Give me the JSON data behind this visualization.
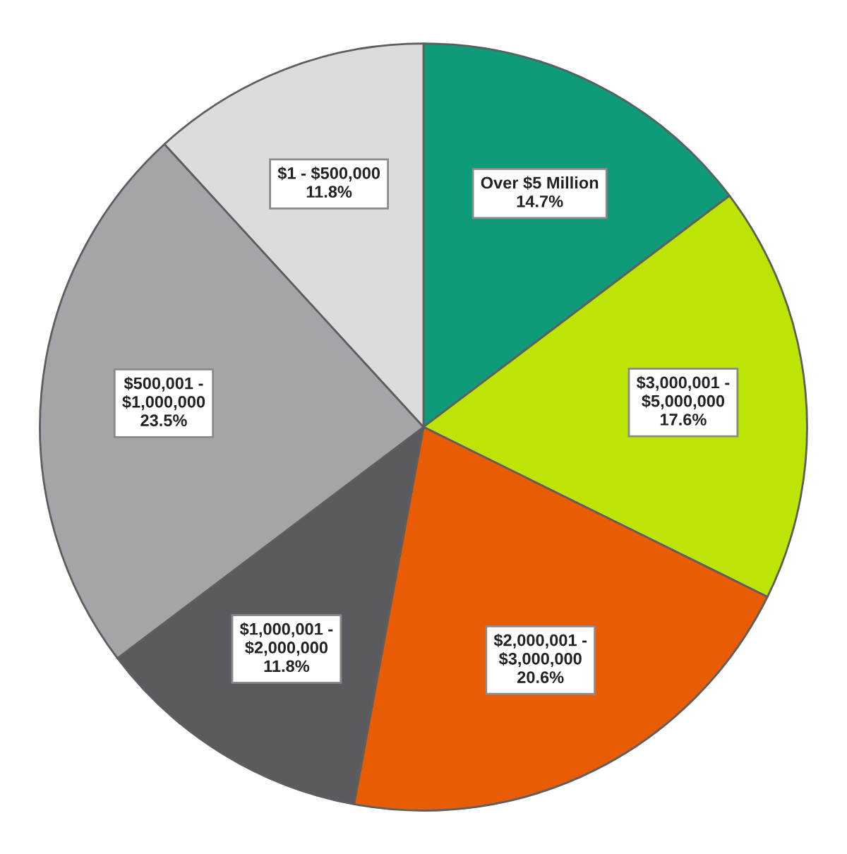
{
  "chart_data": {
    "type": "pie",
    "categories": [
      "Over $5 Million",
      "$3,000,001 -\n$5,000,000",
      "$2,000,001 -\n$3,000,000",
      "$1,000,001 -\n$2,000,000",
      "$500,001 -\n$1,000,000",
      "$1 - $500,000"
    ],
    "values": [
      14.7,
      17.6,
      20.6,
      11.8,
      23.5,
      11.8
    ],
    "colors": [
      "#0f9a7a",
      "#bce404",
      "#e85d04",
      "#5b5b5f",
      "#a3a5a8",
      "#dcdcdc"
    ],
    "value_labels": [
      "14.7%",
      "17.6%",
      "20.6%",
      "11.8%",
      "23.5%",
      "11.8%"
    ]
  }
}
